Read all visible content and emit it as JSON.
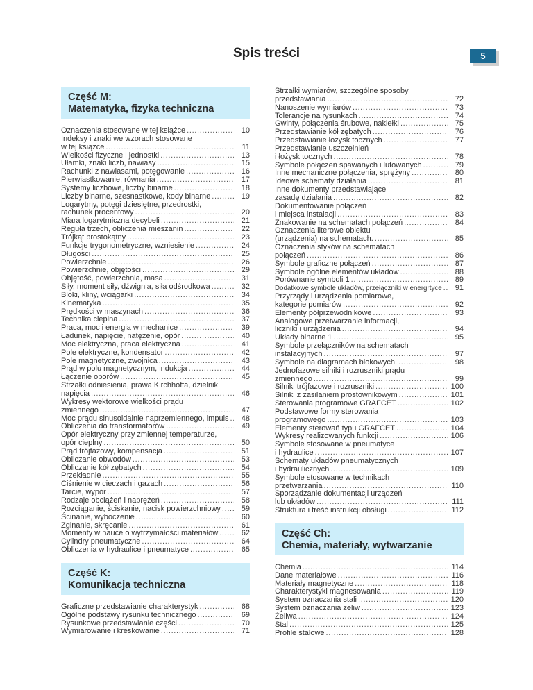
{
  "page": {
    "title": "Spis treści",
    "number": "5"
  },
  "colors": {
    "section_bg": "#cdeefa",
    "badge": "#1b6a93"
  },
  "sections": [
    {
      "heading": [
        "Część M:",
        "Matematyka, fizyka techniczna"
      ],
      "entries": [
        {
          "lines": [
            "Oznaczenia stosowane w tej książce"
          ],
          "page": "10"
        },
        {
          "lines": [
            "Indeksy i znaki we wzorach stosowane",
            "w tej książce"
          ],
          "page": "11"
        },
        {
          "lines": [
            "Wielkości fizyczne i jednostki"
          ],
          "page": "13"
        },
        {
          "lines": [
            "Ułamki, znaki liczb, nawiasy"
          ],
          "page": "15"
        },
        {
          "lines": [
            "Rachunki z nawiasami, potęgowanie"
          ],
          "page": "16"
        },
        {
          "lines": [
            "Pierwiastkowanie, równania"
          ],
          "page": "17"
        },
        {
          "lines": [
            "Systemy liczbowe, liczby binarne"
          ],
          "page": "18"
        },
        {
          "lines": [
            "Liczby binarne, szesnastkowe, kody binarne"
          ],
          "page": "19"
        },
        {
          "lines": [
            "Logarytmy, potęgi dziesiętne, przedrostki,",
            "rachunek procentowy"
          ],
          "page": "20"
        },
        {
          "lines": [
            "Miara logarytmiczna decybeli"
          ],
          "page": "21"
        },
        {
          "lines": [
            "Reguła trzech, obliczenia mieszanin"
          ],
          "page": "22"
        },
        {
          "lines": [
            "Trójkąt prostokątny"
          ],
          "page": "23"
        },
        {
          "lines": [
            "Funkcje trygonometryczne, wzniesienie"
          ],
          "page": "24"
        },
        {
          "lines": [
            "Długości"
          ],
          "page": "25"
        },
        {
          "lines": [
            "Powierzchnie"
          ],
          "page": "26"
        },
        {
          "lines": [
            "Powierzchnie, objętości"
          ],
          "page": "29"
        },
        {
          "lines": [
            "Objętość, powierzchnia, masa"
          ],
          "page": "31"
        },
        {
          "lines": [
            "Siły, moment siły, dźwignia, siła odśrodkowa"
          ],
          "page": "32"
        },
        {
          "lines": [
            "Bloki, kliny, wciągarki"
          ],
          "page": "34"
        },
        {
          "lines": [
            "Kinematyka"
          ],
          "page": "35"
        },
        {
          "lines": [
            "Prędkości w maszynach"
          ],
          "page": "36"
        },
        {
          "lines": [
            "Technika cieplna"
          ],
          "page": "37"
        },
        {
          "lines": [
            "Praca, moc i energia w mechanice"
          ],
          "page": "39"
        },
        {
          "lines": [
            "Ładunek, napięcie, natężenie, opór"
          ],
          "page": "40"
        },
        {
          "lines": [
            "Moc elektryczna, praca elektryczna"
          ],
          "page": "41"
        },
        {
          "lines": [
            "Pole elektryczne, kondensator"
          ],
          "page": "42"
        },
        {
          "lines": [
            "Pole magnetyczne, zwojnica"
          ],
          "page": "43"
        },
        {
          "lines": [
            "Prąd w polu magnetycznym, indukcja"
          ],
          "page": "44"
        },
        {
          "lines": [
            "Łączenie oporów"
          ],
          "page": "45"
        },
        {
          "lines": [
            "Strzałki odniesienia, prawa Kirchhoffa, dzielnik",
            "napięcia"
          ],
          "page": "46"
        },
        {
          "lines": [
            "Wykresy wektorowe wielkości prądu",
            "zmiennego"
          ],
          "page": "47"
        },
        {
          "lines": [
            "Moc prądu sinusoidalnie naprzemiennego, impuls"
          ],
          "page": "48"
        },
        {
          "lines": [
            "Obliczenia do transformatorów"
          ],
          "page": "49"
        },
        {
          "lines": [
            "Opór elektryczny przy zmiennej temperaturze,",
            "opór  cieplny"
          ],
          "page": "50"
        },
        {
          "lines": [
            "Prąd trójfazowy, kompensacja"
          ],
          "page": "51"
        },
        {
          "lines": [
            "Obliczanie obwodów"
          ],
          "page": "53"
        },
        {
          "lines": [
            "Obliczanie kół zębatych"
          ],
          "page": "54"
        },
        {
          "lines": [
            "Przekładnie"
          ],
          "page": "55"
        },
        {
          "lines": [
            "Ciśnienie w cieczach i gazach"
          ],
          "page": "56"
        },
        {
          "lines": [
            "Tarcie, wypór"
          ],
          "page": "57"
        },
        {
          "lines": [
            "Rodzaje obciążeń i naprężeń"
          ],
          "page": "58"
        },
        {
          "lines": [
            "Rozciąganie, ściskanie, nacisk powierzchniowy"
          ],
          "page": "59"
        },
        {
          "lines": [
            "Ścinanie, wyboczenie"
          ],
          "page": "60"
        },
        {
          "lines": [
            "Zginanie, skręcanie"
          ],
          "page": "61"
        },
        {
          "lines": [
            "Momenty w nauce o wytrzymałości materiałów"
          ],
          "page": "62"
        },
        {
          "lines": [
            "Cylindry pneumatyczne"
          ],
          "page": "64"
        },
        {
          "lines": [
            "Obliczenia w hydraulice i pneumatyce"
          ],
          "page": "65"
        }
      ]
    },
    {
      "heading": [
        "Część K:",
        "Komunikacja techniczna"
      ],
      "entries": [
        {
          "lines": [
            "Graficzne przedstawianie charakterystyk"
          ],
          "page": "68"
        },
        {
          "lines": [
            "Ogólne podstawy rysunku technicznego"
          ],
          "page": "69"
        },
        {
          "lines": [
            "Rysunkowe przedstawianie części"
          ],
          "page": "70"
        },
        {
          "lines": [
            "Wymiarowanie i kreskowanie"
          ],
          "page": "71"
        },
        {
          "lines": [
            "Strzałki wymiarów, szczególne sposoby",
            "przedstawiania"
          ],
          "page": "72"
        },
        {
          "lines": [
            "Nanoszenie wymiarów"
          ],
          "page": "73"
        },
        {
          "lines": [
            "Tolerancje na rysunkach"
          ],
          "page": "74"
        },
        {
          "lines": [
            "Gwinty, połączenia śrubowe, nakiełki"
          ],
          "page": "75"
        },
        {
          "lines": [
            "Przedstawianie kół zębatych"
          ],
          "page": "76"
        },
        {
          "lines": [
            "Przedstawianie łożysk tocznych"
          ],
          "page": "77"
        },
        {
          "lines": [
            "Przedstawianie uszczelnień",
            "i łożysk tocznych"
          ],
          "page": "78"
        },
        {
          "lines": [
            "Symbole połączeń spawanych i lutowanych"
          ],
          "page": "79"
        },
        {
          "lines": [
            "Inne mechaniczne połączenia, sprężyny"
          ],
          "page": "80"
        },
        {
          "lines": [
            "Ideowe schematy działania"
          ],
          "page": "81"
        },
        {
          "lines": [
            "Inne dokumenty przedstawiające",
            "zasadę działania"
          ],
          "page": "82"
        },
        {
          "lines": [
            "Dokumentowanie połączeń",
            "i miejsca instalacji"
          ],
          "page": "83"
        },
        {
          "lines": [
            "Znakowanie na schematach połączeń"
          ],
          "page": "84"
        },
        {
          "lines": [
            "Oznaczenia literowe obiektu",
            "(urządzenia) na schematach."
          ],
          "page": "85"
        },
        {
          "lines": [
            "Oznaczenia styków na schematach",
            "połączeń"
          ],
          "page": "86"
        },
        {
          "lines": [
            "Symbole graficzne połączeń"
          ],
          "page": "87"
        },
        {
          "lines": [
            "Symbole ogólne elementów układów"
          ],
          "page": "88"
        },
        {
          "lines": [
            "Porównanie symboli 1"
          ],
          "page": "89"
        },
        {
          "lines": [
            "Dodatkowe symbole układów, przełączniki w energrtyce"
          ],
          "page": "91"
        },
        {
          "lines": [
            "Przyrządy i urządzenia pomiarowe,",
            "kategorie pomiarów"
          ],
          "page": "92"
        },
        {
          "lines": [
            "Elementy półprzewodnikowe"
          ],
          "page": "93"
        },
        {
          "lines": [
            "Analogowe przetwarzanie informacji,",
            "liczniki i urządzenia"
          ],
          "page": "94"
        },
        {
          "lines": [
            "Układy binarne 1"
          ],
          "page": "95"
        },
        {
          "lines": [
            "Symbole przełączników na schematach",
            "instalacyjnych"
          ],
          "page": "97"
        },
        {
          "lines": [
            "Symbole na diagramach blokowych."
          ],
          "page": "98"
        },
        {
          "lines": [
            "Jednofazowe silniki i rozruszniki prądu",
            "zmiennego"
          ],
          "page": "99"
        },
        {
          "lines": [
            "Silniki trójfazowe i rozruszniki"
          ],
          "page": "100"
        },
        {
          "lines": [
            "Silniki z zasilaniem prostownikowym"
          ],
          "page": "101"
        },
        {
          "lines": [
            "Sterowania programowe GRAFCET"
          ],
          "page": "102"
        },
        {
          "lines": [
            "Podstawowe formy sterowania",
            "programowego"
          ],
          "page": "103"
        },
        {
          "lines": [
            "Elementy sterowań typu GRAFCET"
          ],
          "page": "104"
        },
        {
          "lines": [
            "Wykresy realizowanych funkcji"
          ],
          "page": "106"
        },
        {
          "lines": [
            "Symbole stosowane w pneumatyce",
            "i hydraulice"
          ],
          "page": "107"
        },
        {
          "lines": [
            "Schematy układów pneumatycznych",
            "i hydraulicznych"
          ],
          "page": "109"
        },
        {
          "lines": [
            "Symbole stosowane w technikach",
            "przetwarzania"
          ],
          "page": "110"
        },
        {
          "lines": [
            "Sporządzanie dokumentacji urządzeń",
            "lub układów"
          ],
          "page": "111"
        },
        {
          "lines": [
            "Struktura i treść instrukcji obsługi"
          ],
          "page": "112"
        }
      ]
    },
    {
      "heading": [
        "Część Ch:",
        "Chemia, materiały, wytwarzanie"
      ],
      "entries": [
        {
          "lines": [
            "Chemia"
          ],
          "page": "114"
        },
        {
          "lines": [
            "Dane materiałowe"
          ],
          "page": "116"
        },
        {
          "lines": [
            "Materiały magnetyczne"
          ],
          "page": "118"
        },
        {
          "lines": [
            "Charakterystyki magnesowania"
          ],
          "page": "119"
        },
        {
          "lines": [
            "System oznaczania stali"
          ],
          "page": "120"
        },
        {
          "lines": [
            "System oznaczania żeliw"
          ],
          "page": "123"
        },
        {
          "lines": [
            "Żeliwa"
          ],
          "page": "124"
        },
        {
          "lines": [
            "Stal"
          ],
          "page": "125"
        },
        {
          "lines": [
            "Profile stalowe"
          ],
          "page": "128"
        }
      ]
    }
  ]
}
